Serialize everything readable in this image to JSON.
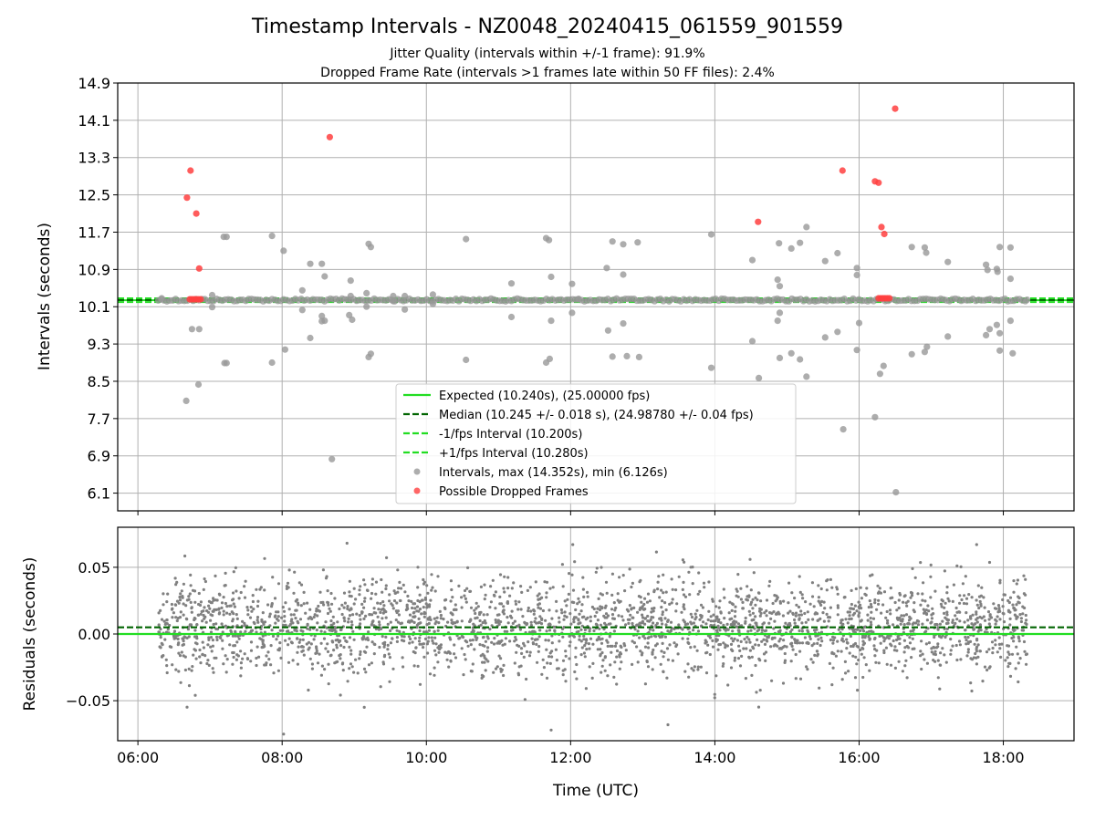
{
  "figure": {
    "title": "Timestamp Intervals - NZ0048_20240415_061559_901559",
    "subtitle_1": "Jitter Quality (intervals within +/-1 frame): 91.9%",
    "subtitle_2": "Dropped Frame Rate (intervals >1 frames late within 50 FF files): 2.4%"
  },
  "chart_data": [
    {
      "type": "scatter",
      "panel": "intervals",
      "title": "",
      "xlabel": "",
      "ylabel": "Intervals (seconds)",
      "xlim": [
        5.72,
        18.98
      ],
      "ylim": [
        5.72,
        14.9
      ],
      "y_ticks": [
        6.1,
        6.9,
        7.7,
        8.5,
        9.3,
        10.1,
        10.9,
        11.7,
        12.5,
        13.3,
        14.1,
        14.9
      ],
      "y_tick_labels": [
        "6.1",
        "6.9",
        "7.7",
        "8.5",
        "9.3",
        "10.1",
        "10.9",
        "11.7",
        "12.5",
        "13.3",
        "14.1",
        "14.9"
      ],
      "grid": true,
      "legend_position": "lower-center",
      "lines": [
        {
          "name": "Expected (10.240s), (25.00000 fps)",
          "y": 10.24,
          "color": "#22dd22",
          "style": "solid"
        },
        {
          "name": "Median (10.245 +/- 0.018 s), (24.98780 +/- 0.04 fps)",
          "y": 10.245,
          "color": "#006400",
          "style": "dashed"
        },
        {
          "name": "-1/fps Interval (10.200s)",
          "y": 10.2,
          "color": "#22dd22",
          "style": "dashed"
        },
        {
          "name": "+1/fps Interval (10.280s)",
          "y": 10.28,
          "color": "#22dd22",
          "style": "dashed"
        }
      ],
      "intervals_series": {
        "name": "Intervals, max (14.352s), min (6.126s)",
        "color": "#999999",
        "main_band": {
          "x_start": 6.28,
          "x_end": 18.33,
          "y": 10.245
        },
        "points": [
          [
            6.33,
            10.28
          ],
          [
            6.67,
            8.08
          ],
          [
            6.75,
            9.62
          ],
          [
            6.84,
            8.43
          ],
          [
            6.85,
            9.62
          ],
          [
            7.03,
            10.09
          ],
          [
            7.03,
            10.35
          ],
          [
            7.19,
            11.6
          ],
          [
            7.2,
            8.89
          ],
          [
            7.23,
            8.89
          ],
          [
            7.23,
            11.6
          ],
          [
            7.86,
            11.62
          ],
          [
            7.86,
            8.9
          ],
          [
            8.02,
            11.3
          ],
          [
            8.04,
            9.18
          ],
          [
            8.28,
            10.45
          ],
          [
            8.28,
            10.03
          ],
          [
            8.39,
            9.43
          ],
          [
            8.39,
            11.02
          ],
          [
            8.55,
            11.02
          ],
          [
            8.55,
            9.9
          ],
          [
            8.59,
            10.75
          ],
          [
            8.59,
            9.8
          ],
          [
            8.55,
            9.79
          ],
          [
            8.69,
            6.83
          ],
          [
            8.95,
            10.66
          ],
          [
            8.95,
            10.33
          ],
          [
            8.93,
            9.92
          ],
          [
            8.97,
            9.82
          ],
          [
            9.17,
            10.1
          ],
          [
            9.17,
            10.39
          ],
          [
            9.2,
            11.45
          ],
          [
            9.23,
            11.38
          ],
          [
            9.2,
            9.02
          ],
          [
            9.23,
            9.09
          ],
          [
            9.54,
            10.22
          ],
          [
            9.54,
            10.33
          ],
          [
            9.7,
            10.04
          ],
          [
            9.7,
            10.33
          ],
          [
            10.09,
            10.36
          ],
          [
            10.09,
            10.16
          ],
          [
            10.55,
            11.55
          ],
          [
            10.55,
            8.96
          ],
          [
            11.18,
            10.6
          ],
          [
            11.18,
            9.88
          ],
          [
            11.66,
            11.57
          ],
          [
            11.7,
            11.53
          ],
          [
            11.66,
            8.9
          ],
          [
            11.71,
            8.98
          ],
          [
            11.73,
            10.74
          ],
          [
            11.73,
            9.8
          ],
          [
            12.02,
            10.59
          ],
          [
            12.02,
            9.97
          ],
          [
            12.11,
            10.26
          ],
          [
            12.5,
            10.93
          ],
          [
            12.52,
            9.59
          ],
          [
            12.58,
            11.5
          ],
          [
            12.58,
            9.03
          ],
          [
            12.73,
            11.44
          ],
          [
            12.73,
            10.79
          ],
          [
            12.73,
            9.74
          ],
          [
            12.78,
            9.04
          ],
          [
            12.93,
            11.48
          ],
          [
            12.95,
            9.02
          ],
          [
            13.95,
            11.65
          ],
          [
            13.95,
            8.79
          ],
          [
            14.52,
            11.1
          ],
          [
            14.52,
            9.36
          ],
          [
            14.61,
            8.57
          ],
          [
            14.87,
            10.68
          ],
          [
            14.87,
            9.8
          ],
          [
            14.89,
            11.46
          ],
          [
            14.9,
            10.54
          ],
          [
            14.9,
            9.97
          ],
          [
            14.9,
            9.0
          ],
          [
            15.06,
            11.35
          ],
          [
            15.06,
            9.1
          ],
          [
            15.18,
            11.47
          ],
          [
            15.18,
            8.97
          ],
          [
            15.27,
            11.81
          ],
          [
            15.27,
            8.6
          ],
          [
            15.53,
            11.08
          ],
          [
            15.53,
            9.44
          ],
          [
            15.7,
            9.56
          ],
          [
            15.7,
            11.25
          ],
          [
            15.78,
            7.47
          ],
          [
            15.97,
            10.93
          ],
          [
            15.97,
            10.78
          ],
          [
            16.0,
            9.75
          ],
          [
            15.97,
            9.17
          ],
          [
            16.22,
            7.73
          ],
          [
            16.29,
            8.66
          ],
          [
            16.34,
            8.83
          ],
          [
            16.51,
            6.12
          ],
          [
            16.73,
            11.38
          ],
          [
            16.73,
            9.08
          ],
          [
            16.91,
            11.37
          ],
          [
            16.93,
            11.26
          ],
          [
            16.91,
            9.13
          ],
          [
            16.94,
            9.24
          ],
          [
            17.23,
            11.06
          ],
          [
            17.23,
            9.46
          ],
          [
            17.76,
            11.0
          ],
          [
            17.76,
            9.49
          ],
          [
            17.78,
            10.89
          ],
          [
            17.81,
            9.62
          ],
          [
            17.91,
            10.91
          ],
          [
            17.92,
            10.85
          ],
          [
            17.91,
            9.71
          ],
          [
            17.95,
            9.53
          ],
          [
            17.95,
            9.16
          ],
          [
            17.95,
            11.38
          ],
          [
            18.1,
            11.37
          ],
          [
            18.1,
            10.7
          ],
          [
            18.1,
            9.8
          ],
          [
            18.13,
            9.1
          ],
          [
            18.33,
            10.25
          ]
        ]
      },
      "dropped_series": {
        "name": "Possible Dropped Frames",
        "color": "#ff4040",
        "points": [
          [
            6.68,
            12.44
          ],
          [
            6.73,
            13.02
          ],
          [
            6.81,
            12.1
          ],
          [
            6.85,
            10.92
          ],
          [
            6.72,
            10.26
          ],
          [
            6.75,
            10.26
          ],
          [
            6.78,
            10.26
          ],
          [
            6.81,
            10.26
          ],
          [
            6.84,
            10.26
          ],
          [
            6.87,
            10.26
          ],
          [
            8.66,
            13.74
          ],
          [
            14.6,
            11.92
          ],
          [
            15.77,
            13.02
          ],
          [
            16.22,
            12.79
          ],
          [
            16.27,
            12.76
          ],
          [
            16.31,
            11.81
          ],
          [
            16.35,
            11.66
          ],
          [
            16.5,
            14.35
          ],
          [
            16.27,
            10.28
          ],
          [
            16.3,
            10.28
          ],
          [
            16.33,
            10.28
          ],
          [
            16.36,
            10.28
          ],
          [
            16.39,
            10.28
          ],
          [
            16.42,
            10.28
          ]
        ]
      }
    },
    {
      "type": "scatter",
      "panel": "residuals",
      "title": "",
      "xlabel": "Time (UTC)",
      "ylabel": "Residuals (seconds)",
      "xlim": [
        5.72,
        18.98
      ],
      "ylim": [
        -0.08,
        0.08
      ],
      "x_ticks": [
        6,
        8,
        10,
        12,
        14,
        16,
        18
      ],
      "x_tick_labels": [
        "06:00",
        "08:00",
        "10:00",
        "12:00",
        "14:00",
        "16:00",
        "18:00"
      ],
      "y_ticks": [
        -0.05,
        0.0,
        0.05
      ],
      "y_tick_labels": [
        "−0.05",
        "0.00",
        "0.05"
      ],
      "grid": true,
      "lines": [
        {
          "y": 0.0,
          "color": "#22dd22",
          "style": "solid"
        },
        {
          "y": 0.005,
          "color": "#006400",
          "style": "dashed"
        }
      ],
      "residual_points": {
        "color": "#808080",
        "x_range": [
          6.28,
          18.33
        ],
        "count": 2800,
        "center": 0.005,
        "spread": 0.018,
        "extremes": [
          [
            8.02,
            -0.075
          ],
          [
            11.73,
            -0.072
          ],
          [
            13.35,
            -0.068
          ],
          [
            8.9,
            0.068
          ],
          [
            12.03,
            0.067
          ],
          [
            17.63,
            0.067
          ]
        ]
      }
    }
  ]
}
